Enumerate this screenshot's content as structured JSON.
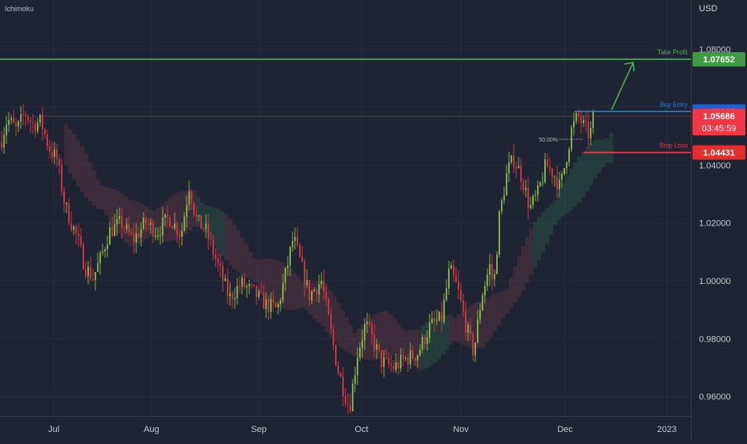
{
  "indicator": "Ichimoku",
  "currency": "USD",
  "chart_data": {
    "type": "candlestick",
    "ylim": [
      0.945,
      1.097
    ],
    "y_ticks": [
      "1.08000",
      "1.06000",
      "1.04000",
      "1.02000",
      "1.00000",
      "0.98000",
      "0.96000"
    ],
    "x_ticks": [
      "Jul",
      "Aug",
      "Sep",
      "Oct",
      "Nov",
      "Dec",
      "2023"
    ],
    "date_range": [
      "2022-06-15",
      "2022-12-10"
    ],
    "price_path": [
      [
        0,
        1.048
      ],
      [
        8,
        1.056
      ],
      [
        20,
        1.052
      ],
      [
        30,
        1.058
      ],
      [
        40,
        1.054
      ],
      [
        50,
        1.055
      ],
      [
        60,
        1.046
      ],
      [
        70,
        1.042
      ],
      [
        80,
        1.026
      ],
      [
        95,
        1.015
      ],
      [
        105,
        1.005
      ],
      [
        115,
        1.001
      ],
      [
        125,
        1.008
      ],
      [
        135,
        1.017
      ],
      [
        150,
        1.02
      ],
      [
        165,
        1.014
      ],
      [
        180,
        1.02
      ],
      [
        195,
        1.017
      ],
      [
        210,
        1.022
      ],
      [
        225,
        1.016
      ],
      [
        235,
        1.033
      ],
      [
        245,
        1.02
      ],
      [
        255,
        1.018
      ],
      [
        265,
        1.01
      ],
      [
        275,
        1.002
      ],
      [
        285,
        0.994
      ],
      [
        300,
        0.999
      ],
      [
        315,
        0.996
      ],
      [
        330,
        0.992
      ],
      [
        345,
        0.99
      ],
      [
        355,
        1.002
      ],
      [
        365,
        1.015
      ],
      [
        375,
        1.005
      ],
      [
        385,
        0.995
      ],
      [
        400,
        1.0
      ],
      [
        410,
        0.985
      ],
      [
        420,
        0.97
      ],
      [
        428,
        0.962
      ],
      [
        435,
        0.956
      ],
      [
        445,
        0.975
      ],
      [
        455,
        0.985
      ],
      [
        465,
        0.979
      ],
      [
        475,
        0.972
      ],
      [
        490,
        0.97
      ],
      [
        505,
        0.973
      ],
      [
        520,
        0.975
      ],
      [
        535,
        0.984
      ],
      [
        550,
        0.987
      ],
      [
        560,
        1.004
      ],
      [
        570,
        0.997
      ],
      [
        580,
        0.985
      ],
      [
        590,
        0.975
      ],
      [
        600,
        0.995
      ],
      [
        610,
        1.005
      ],
      [
        615,
        0.998
      ],
      [
        622,
        1.022
      ],
      [
        632,
        1.038
      ],
      [
        640,
        1.042
      ],
      [
        650,
        1.036
      ],
      [
        660,
        1.025
      ],
      [
        670,
        1.03
      ],
      [
        680,
        1.04
      ],
      [
        690,
        1.037
      ],
      [
        698,
        1.032
      ],
      [
        705,
        1.042
      ],
      [
        712,
        1.052
      ],
      [
        720,
        1.057
      ],
      [
        728,
        1.053
      ],
      [
        735,
        1.05
      ],
      [
        739,
        1.056
      ]
    ],
    "cloud_path": [
      [
        80,
        1.047
      ],
      [
        120,
        1.03
      ],
      [
        160,
        1.02
      ],
      [
        200,
        1.02
      ],
      [
        240,
        1.025
      ],
      [
        280,
        1.015
      ],
      [
        320,
        1.002
      ],
      [
        360,
        0.997
      ],
      [
        400,
        0.992
      ],
      [
        440,
        0.978
      ],
      [
        480,
        0.982
      ],
      [
        520,
        0.976
      ],
      [
        560,
        0.983
      ],
      [
        600,
        0.985
      ],
      [
        630,
        0.993
      ],
      [
        660,
        1.01
      ],
      [
        700,
        1.028
      ],
      [
        740,
        1.042
      ],
      [
        765,
        1.047
      ]
    ],
    "current_price": "1.05686",
    "countdown": "03:45:59",
    "levels": [
      {
        "label": "Take Profit",
        "price_label": "1.07652",
        "value": 1.07652,
        "color": "#4caf50"
      },
      {
        "label": "Buy Entry",
        "price_label": "1.05848",
        "value": 1.05848,
        "color": "#1e88e5"
      },
      {
        "label": "Stop Loss",
        "price_label": "1.04431",
        "value": 1.04431,
        "color": "#f23645"
      }
    ],
    "fib_label": "50.00%"
  }
}
